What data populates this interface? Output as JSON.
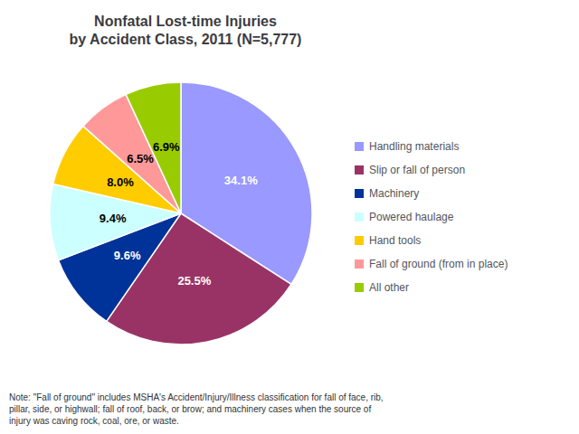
{
  "chart_data": {
    "type": "pie",
    "title": "Nonfatal Lost-time Injuries\nby Accident Class, 2011 (N=5,777)",
    "categories": [
      "Handling materials",
      "Slip or fall of person",
      "Machinery",
      "Powered haulage",
      "Hand tools",
      "Fall of ground (from in place)",
      "All other"
    ],
    "values": [
      34.1,
      25.5,
      9.6,
      9.4,
      8.0,
      6.5,
      6.9
    ],
    "value_labels": [
      "34.1%",
      "25.5%",
      "9.6%",
      "9.4%",
      "8.0%",
      "6.5%",
      "6.9%"
    ],
    "colors": [
      "#9999ff",
      "#993366",
      "#003399",
      "#ccffff",
      "#ffcc00",
      "#ff9999",
      "#99cc00"
    ],
    "data_labels": true,
    "legend": "right",
    "annotations": [
      "Note: \"Fall of ground\" includes MSHA's Accident/Injury/Illness classification for fall of face, rib,\npillar, side, or highwall; fall of roof, back, or brow; and machinery cases when the source of\ninjury was caving rock, coal, ore, or waste."
    ]
  }
}
